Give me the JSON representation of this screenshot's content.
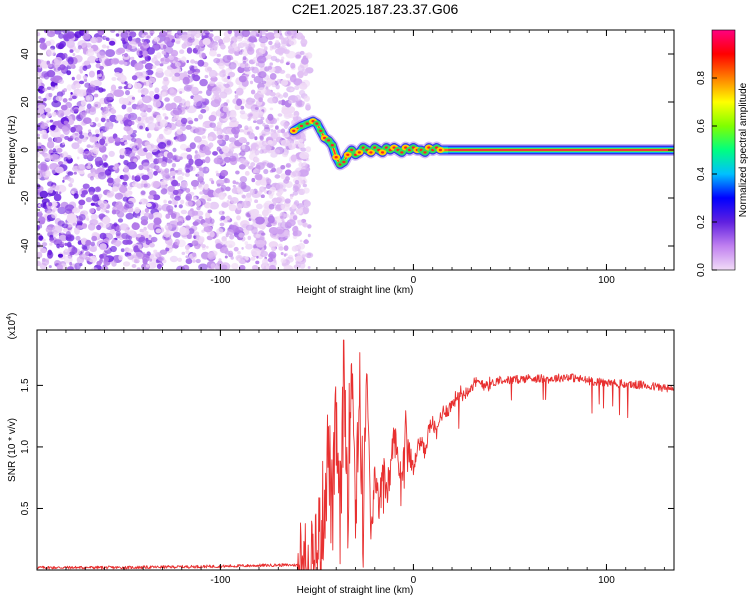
{
  "chart_data": [
    {
      "type": "heatmap",
      "title": "C2E1.2025.187.23.37.G06",
      "xlabel": "Height of straight line (km)",
      "ylabel": "Frequency (Hz)",
      "xlim": [
        -195,
        135
      ],
      "ylim": [
        -50,
        50
      ],
      "xticks": [
        -100,
        0,
        100
      ],
      "yticks": [
        -40,
        -20,
        0,
        20,
        40
      ],
      "colorbar": {
        "label": "Normalized spectral amplitude",
        "range": [
          0,
          1
        ],
        "ticks": [
          "0.0",
          "0.2",
          "0.4",
          "0.6",
          "0.8"
        ],
        "colors": [
          "#f2dcf7",
          "#c080f0",
          "#6020e0",
          "#0000ff",
          "#00c0ff",
          "#00ff80",
          "#80ff00",
          "#ffff00",
          "#ff8000",
          "#ff0000",
          "#ff0080"
        ]
      },
      "noise_region": {
        "x_range": [
          -195,
          -58
        ],
        "freq_range": [
          -50,
          50
        ]
      },
      "tone_track": {
        "x": [
          -62,
          -58,
          -55,
          -52,
          -50,
          -48,
          -46,
          -44,
          -42,
          -40,
          -38,
          -36,
          -34,
          -32,
          -30,
          -28,
          -26,
          -24,
          -22,
          -20,
          -18,
          -16,
          -14,
          -12,
          -10,
          -8,
          -6,
          -4,
          -2,
          0,
          2,
          4,
          6,
          8,
          10,
          12,
          14,
          20,
          40,
          80,
          120,
          135
        ],
        "freq": [
          8,
          10,
          11,
          12,
          11,
          8,
          5,
          4,
          2,
          -3,
          -6,
          -5,
          -2,
          0,
          -2,
          -1,
          1,
          0,
          -1,
          1,
          0,
          -1,
          1,
          0,
          1,
          0,
          -1,
          1,
          0,
          1,
          0,
          0,
          -1,
          1,
          0,
          1,
          0,
          0,
          0,
          0,
          0,
          0
        ]
      }
    },
    {
      "type": "line",
      "xlabel": "Height of straight line (km)",
      "ylabel": "SNR (10 * v/v)",
      "yscale_label": "(x10",
      "yscale_exp": "4",
      "xlim": [
        -195,
        135
      ],
      "ylim": [
        0,
        1.95
      ],
      "xticks": [
        -100,
        0,
        100
      ],
      "yticks": [
        0.5,
        1.0,
        1.5
      ],
      "ytick_labels": [
        "0.5",
        "1.0",
        "1.5"
      ],
      "color": "#e83030",
      "series": [
        {
          "x": [
            -195,
            -150,
            -100,
            -70,
            -60,
            -55,
            -52,
            -50,
            -48,
            -46,
            -44,
            -42,
            -40,
            -38,
            -36,
            -34,
            -32,
            -30,
            -28,
            -26,
            -24,
            -22,
            -20,
            -18,
            -16,
            -14,
            -12,
            -10,
            -8,
            -6,
            -4,
            -2,
            0,
            2,
            4,
            6,
            8,
            10,
            12,
            14,
            16,
            18,
            20,
            22,
            24,
            26,
            28,
            30,
            35,
            40,
            45,
            50,
            60,
            70,
            80,
            90,
            100,
            110,
            120,
            130,
            135
          ],
          "y": [
            0.02,
            0.02,
            0.03,
            0.04,
            0.04,
            0.06,
            0.1,
            0.15,
            0.3,
            0.6,
            1.0,
            0.4,
            1.2,
            0.3,
            1.6,
            0.6,
            1.9,
            0.5,
            1.5,
            0.4,
            1.7,
            0.2,
            0.8,
            0.5,
            0.9,
            0.6,
            0.8,
            1.1,
            0.9,
            0.75,
            1.2,
            0.9,
            0.8,
            1.0,
            1.05,
            0.95,
            1.15,
            1.2,
            1.1,
            1.25,
            1.3,
            1.3,
            1.35,
            1.4,
            1.45,
            1.42,
            1.47,
            1.5,
            1.52,
            1.51,
            1.55,
            1.54,
            1.56,
            1.55,
            1.57,
            1.54,
            1.52,
            1.51,
            1.5,
            1.48,
            1.46
          ]
        }
      ]
    }
  ]
}
